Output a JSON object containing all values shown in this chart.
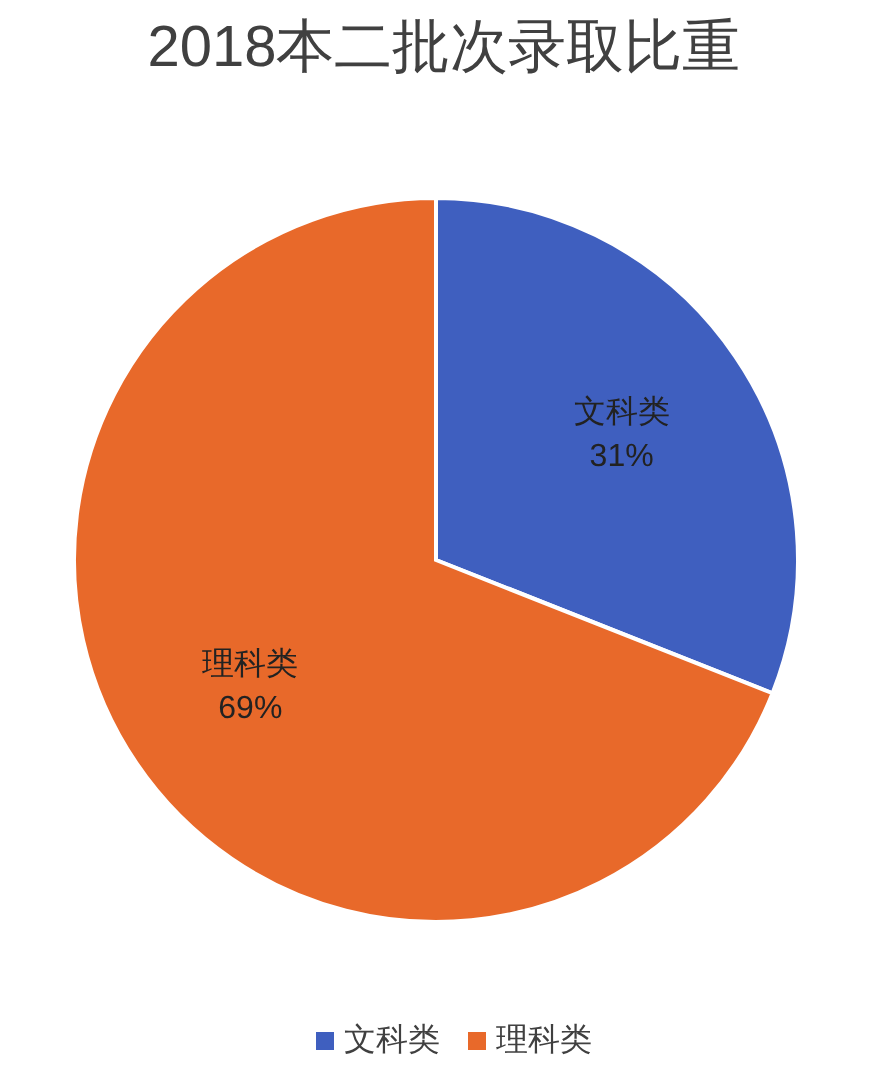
{
  "chart_data": {
    "type": "pie",
    "title": "2018本二批次录取比重",
    "categories": [
      "文科类",
      "理科类"
    ],
    "values": [
      31,
      69
    ],
    "colors": [
      "#3f5fbf",
      "#e8692a"
    ],
    "value_labels": [
      "31%",
      "69%"
    ],
    "legend": "bottom"
  }
}
